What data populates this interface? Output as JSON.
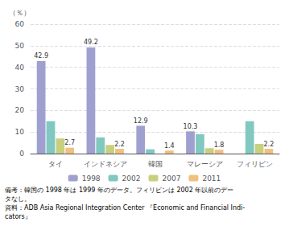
{
  "chart_data": {
    "type": "bar",
    "ylabel": "（％）",
    "categories": [
      "タイ",
      "インドネシア",
      "韓国",
      "マレーシア",
      "フィリピン"
    ],
    "series": [
      {
        "name": "1998",
        "color": "#a0a0d0",
        "values": [
          42.9,
          49.2,
          12.9,
          10.3,
          0
        ],
        "data_labels": true,
        "value_labels": [
          "42.9",
          "49.2",
          "12.9",
          "10.3",
          null
        ]
      },
      {
        "name": "2002",
        "color": "#80c8c0",
        "values": [
          15.0,
          7.5,
          2.0,
          9.0,
          15.0
        ]
      },
      {
        "name": "2007",
        "color": "#c8d080",
        "values": [
          7.0,
          4.0,
          0,
          2.5,
          4.5
        ]
      },
      {
        "name": "2011",
        "color": "#f0c080",
        "values": [
          2.7,
          2.2,
          1.4,
          1.8,
          2.2
        ],
        "data_labels": true
      }
    ],
    "ylim": [
      0,
      60
    ],
    "yticks": [
      0,
      10,
      20,
      30,
      40,
      50,
      60
    ],
    "grid": true,
    "legend": "bottom",
    "annotations": [
      "備考：韓国の 1998 年は 1999 年のデータ。フィリピンは 2002 年以前のデー",
      "タなし。",
      "資料：ADB Asia Regional Integration Center 『Economic and Financial Indi-",
      "cators』"
    ]
  }
}
